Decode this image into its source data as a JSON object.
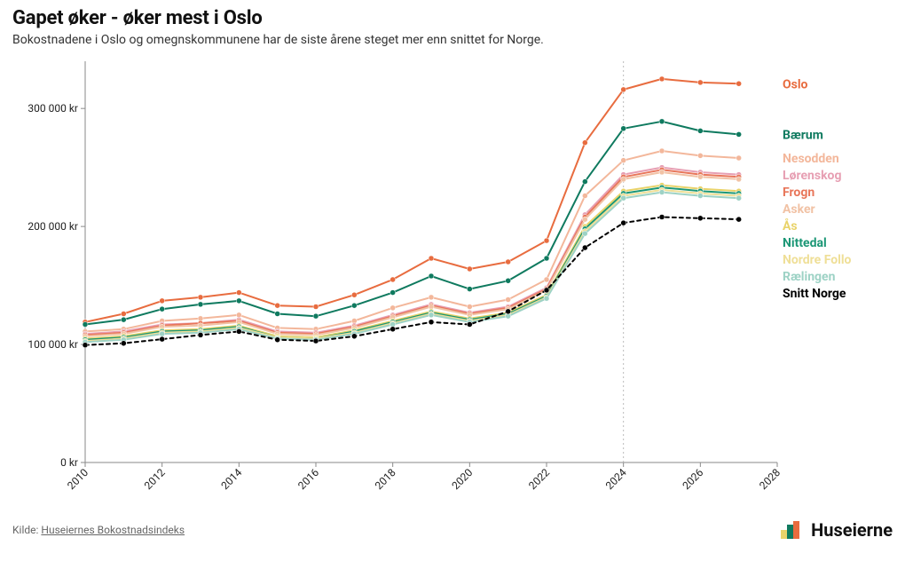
{
  "title": "Gapet øker - øker mest i Oslo",
  "subtitle": "Bokostnadene i Oslo og omegnskommunene har de siste årene steget mer enn snittet for Norge.",
  "source_prefix": "Kilde: ",
  "source_label": "Huseiernes Bokostnadsindeks",
  "brand": "Huseierne",
  "chart": {
    "type": "line",
    "background_color": "#ffffff",
    "axis_color": "#8a8a8a",
    "ref_line_color": "#bbbbbb",
    "text_color": "#222222",
    "font_size_axis": 12,
    "font_size_legend": 14,
    "font_weight_legend": 700,
    "line_width": 2,
    "marker_radius": 3,
    "aspect": "992x520",
    "currency_suffix": " kr",
    "x": {
      "min": 2010,
      "max": 2028,
      "ticks": [
        2010,
        2012,
        2014,
        2016,
        2018,
        2020,
        2022,
        2024,
        2026,
        2028
      ],
      "tick_rotation_deg": -45
    },
    "y": {
      "min": 0,
      "max": 340000,
      "ticks": [
        0,
        100000,
        200000,
        300000
      ],
      "tick_labels": [
        "0 kr",
        "100 000 kr",
        "200 000 kr",
        "300 000 kr"
      ]
    },
    "reference_line_x": 2024,
    "series_years": [
      2010,
      2011,
      2012,
      2013,
      2014,
      2015,
      2016,
      2017,
      2018,
      2019,
      2020,
      2021,
      2022,
      2023,
      2024,
      2025,
      2026,
      2027
    ],
    "series": [
      {
        "name": "Oslo",
        "color": "#e86c3f",
        "dashed": false,
        "values": [
          119000,
          126000,
          137000,
          140000,
          144000,
          133000,
          132000,
          142000,
          155000,
          173000,
          164000,
          170000,
          188000,
          271000,
          316000,
          325000,
          322000,
          321000
        ]
      },
      {
        "name": "Bærum",
        "color": "#0f7a5f",
        "dashed": false,
        "values": [
          117000,
          121000,
          130000,
          134000,
          137000,
          126000,
          124000,
          133000,
          144000,
          158000,
          147000,
          154000,
          173000,
          238000,
          283000,
          289000,
          281000,
          278000
        ]
      },
      {
        "name": "Nesodden",
        "color": "#f3b79b",
        "dashed": false,
        "values": [
          111000,
          113000,
          120000,
          122000,
          125000,
          114000,
          113000,
          120000,
          131000,
          140000,
          132000,
          138000,
          155000,
          226000,
          256000,
          264000,
          260000,
          258000
        ]
      },
      {
        "name": "Lørenskog",
        "color": "#e79fb3",
        "dashed": false,
        "values": [
          109000,
          111000,
          117000,
          118000,
          121000,
          111000,
          110000,
          116000,
          125000,
          134000,
          127000,
          132000,
          148000,
          210000,
          244000,
          250000,
          246000,
          244000
        ]
      },
      {
        "name": "Frogn",
        "color": "#e8765a",
        "dashed": false,
        "values": [
          108000,
          110000,
          116000,
          118000,
          120000,
          110000,
          109000,
          115000,
          124000,
          133000,
          126000,
          131000,
          147000,
          208000,
          242000,
          248000,
          244000,
          242000
        ]
      },
      {
        "name": "Asker",
        "color": "#f1c2a5",
        "dashed": false,
        "values": [
          107000,
          109000,
          115000,
          116000,
          119000,
          109000,
          108000,
          114000,
          123000,
          132000,
          125000,
          130000,
          146000,
          206000,
          240000,
          246000,
          242000,
          240000
        ]
      },
      {
        "name": "Ås",
        "color": "#e9d36a",
        "dashed": false,
        "values": [
          105000,
          107000,
          112000,
          113000,
          116000,
          107000,
          106000,
          112000,
          120000,
          128000,
          122000,
          127000,
          142000,
          200000,
          230000,
          235000,
          232000,
          230000
        ]
      },
      {
        "name": "Nittedal",
        "color": "#1c9776",
        "dashed": false,
        "values": [
          104000,
          106000,
          111000,
          112000,
          115000,
          106000,
          105000,
          111000,
          119000,
          127000,
          121000,
          126000,
          141000,
          198000,
          228000,
          233000,
          230000,
          228000
        ]
      },
      {
        "name": "Nordre Follo",
        "color": "#efdf97",
        "dashed": false,
        "values": [
          103000,
          105000,
          110000,
          111000,
          114000,
          106000,
          105000,
          110000,
          118000,
          126000,
          120000,
          125000,
          140000,
          196000,
          226000,
          231000,
          228000,
          226000
        ]
      },
      {
        "name": "Rælingen",
        "color": "#9dd2c5",
        "dashed": false,
        "values": [
          102000,
          104000,
          109000,
          110000,
          113000,
          105000,
          104000,
          109000,
          117000,
          125000,
          119000,
          124000,
          139000,
          194000,
          224000,
          229000,
          226000,
          224000
        ]
      },
      {
        "name": "Snitt Norge",
        "color": "#000000",
        "dashed": true,
        "values": [
          99500,
          101000,
          104500,
          108000,
          111000,
          104000,
          103000,
          107000,
          113000,
          119000,
          117000,
          128000,
          146000,
          182000,
          203000,
          208000,
          207000,
          206000
        ]
      }
    ],
    "brand_colors": {
      "green": "#0f7a5f",
      "orange": "#e86c3f",
      "yellow": "#e9d36a"
    }
  }
}
